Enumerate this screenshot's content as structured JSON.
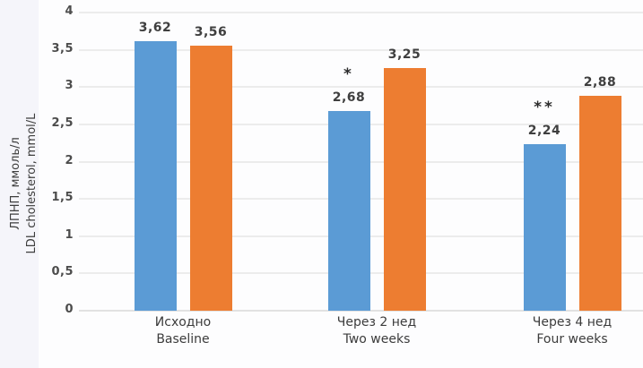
{
  "chart_data": {
    "type": "bar",
    "title": "",
    "ylabel_line1": "ЛПНП, ммоль/л",
    "ylabel_line2": "LDL cholesterol, mmol/L",
    "ylim": [
      0,
      4
    ],
    "ytick_step": 0.5,
    "grid": true,
    "legend_position": "none",
    "yticks": [
      {
        "value": 4,
        "label": "4"
      },
      {
        "value": 3.5,
        "label": "3,5"
      },
      {
        "value": 3,
        "label": "3"
      },
      {
        "value": 2.5,
        "label": "2,5"
      },
      {
        "value": 2,
        "label": "2"
      },
      {
        "value": 1.5,
        "label": "1,5"
      },
      {
        "value": 1,
        "label": "1"
      },
      {
        "value": 0.5,
        "label": "0,5"
      },
      {
        "value": 0,
        "label": "0"
      }
    ],
    "categories": [
      {
        "label_ru": "Исходно",
        "label_en": "Baseline"
      },
      {
        "label_ru": "Через 2 нед",
        "label_en": "Two weeks"
      },
      {
        "label_ru": "Через 4 нед",
        "label_en": "Four weeks"
      }
    ],
    "series": [
      {
        "color": "#5B9BD5",
        "values": [
          3.62,
          2.68,
          2.24
        ],
        "value_labels": [
          "3,62",
          "2,68",
          "2,24"
        ],
        "significance": [
          "",
          "*",
          "**"
        ]
      },
      {
        "color": "#ED7D31",
        "values": [
          3.56,
          3.25,
          2.88
        ],
        "value_labels": [
          "3,56",
          "3,25",
          "2,88"
        ],
        "significance": [
          "",
          "",
          ""
        ]
      }
    ]
  }
}
